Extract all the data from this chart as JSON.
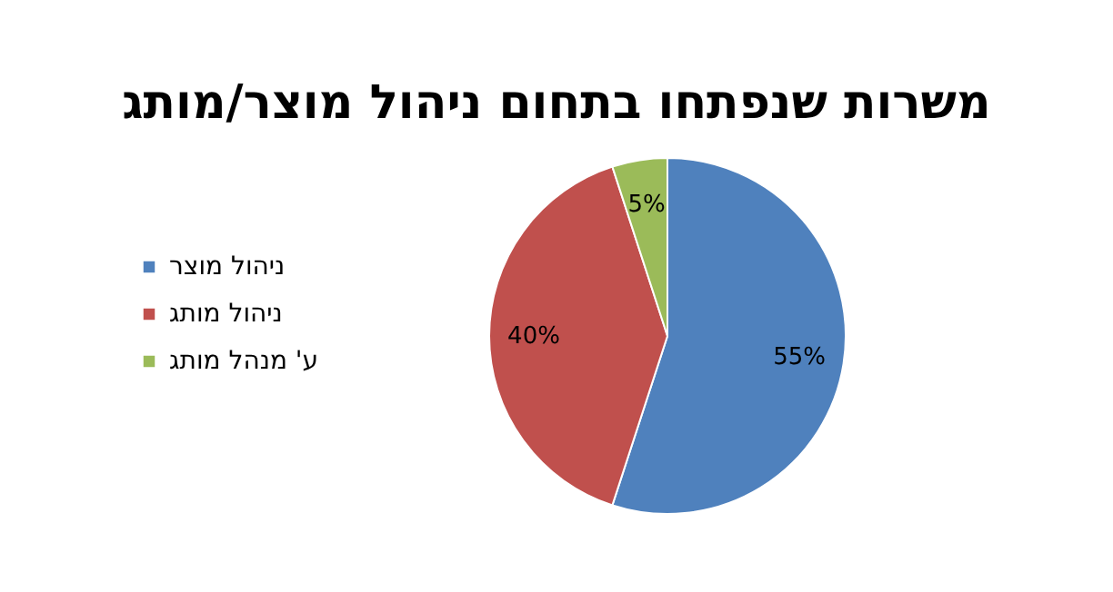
{
  "chart_data": {
    "type": "pie",
    "title": "משרות שנפתחו בתחום ניהול מוצר/מותג",
    "categories": [
      "ניהול מוצר",
      "ניהול מותג",
      "ע' מנהל מותג"
    ],
    "values": [
      55,
      40,
      5
    ],
    "colors": [
      "#4f81bd",
      "#c0504d",
      "#9bbb59"
    ],
    "value_labels": [
      "55%",
      "40%",
      "5%"
    ],
    "legend": "left"
  }
}
